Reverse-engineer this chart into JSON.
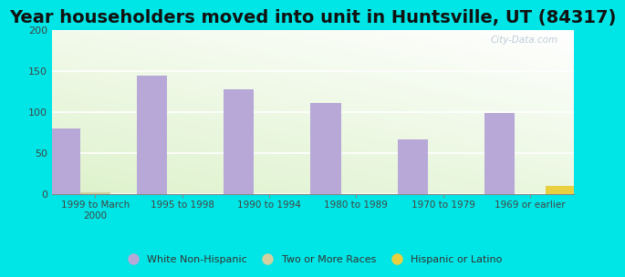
{
  "title": "Year householders moved into unit in Huntsville, UT (84317)",
  "categories": [
    "1999 to March\n2000",
    "1995 to 1998",
    "1990 to 1994",
    "1980 to 1989",
    "1970 to 1979",
    "1969 or earlier"
  ],
  "series": [
    {
      "name": "White Non-Hispanic",
      "color": "#b8a8d8",
      "values": [
        80,
        145,
        128,
        111,
        67,
        99
      ]
    },
    {
      "name": "Two or More Races",
      "color": "#d0d0a0",
      "values": [
        2,
        0,
        0,
        0,
        0,
        0
      ]
    },
    {
      "name": "Hispanic or Latino",
      "color": "#e8d040",
      "values": [
        0,
        0,
        0,
        0,
        0,
        10
      ]
    }
  ],
  "ylim": [
    0,
    200
  ],
  "yticks": [
    0,
    50,
    100,
    150,
    200
  ],
  "background_color": "#00e5e5",
  "title_fontsize": 14,
  "bar_width": 0.35,
  "watermark": "City-Data.com"
}
